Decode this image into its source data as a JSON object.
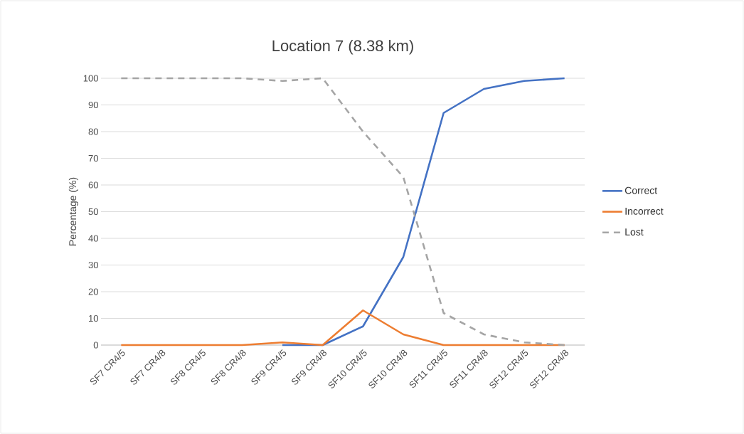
{
  "chart_data": {
    "type": "line",
    "title": "Location 7 (8.38 km)",
    "ylabel": "Percentage (%)",
    "categories": [
      "SF7 CR4/5",
      "SF7 CR4/8",
      "SF8 CR4/5",
      "SF8 CR4/8",
      "SF9 CR4/5",
      "SF9 CR4/8",
      "SF10 CR4/5",
      "SF10 CR4/8",
      "SF11 CR4/5",
      "SF11 CR4/8",
      "SF12 CR4/5",
      "SF12 CR4/8"
    ],
    "series": [
      {
        "name": "Correct",
        "color": "#4472c4",
        "values": [
          null,
          null,
          null,
          null,
          0,
          0,
          7,
          33,
          87,
          96,
          99,
          100
        ]
      },
      {
        "name": "Incorrect",
        "color": "#ed7d31",
        "values": [
          0,
          0,
          0,
          0,
          1,
          0,
          13,
          4,
          0,
          0,
          0,
          0
        ]
      },
      {
        "name": "Lost",
        "color": "#a5a5a5",
        "line_style": "dashed",
        "values": [
          100,
          100,
          100,
          100,
          99,
          100,
          80,
          63,
          12,
          4,
          1,
          0
        ]
      }
    ],
    "ylim": [
      0,
      100
    ],
    "yticks": [
      0,
      10,
      20,
      30,
      40,
      50,
      60,
      70,
      80,
      90,
      100
    ],
    "grid": "y",
    "legend": "right",
    "line_style": "solid",
    "marker": "none"
  }
}
